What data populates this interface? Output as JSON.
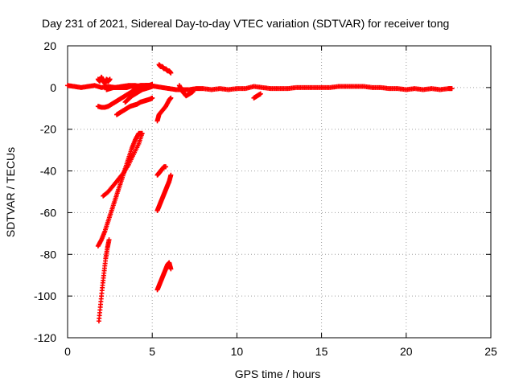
{
  "chart_data": {
    "type": "scatter",
    "title": "Day 231 of 2021, Sidereal Day-to-day VTEC variation (SDTVAR) for receiver tong",
    "xlabel": "GPS time / hours",
    "ylabel": "SDTVAR / TECUs",
    "xlim": [
      0,
      25
    ],
    "ylim": [
      -120,
      20
    ],
    "xticks": [
      0,
      5,
      10,
      15,
      20,
      25
    ],
    "yticks": [
      -120,
      -100,
      -80,
      -60,
      -40,
      -20,
      0,
      20
    ],
    "grid": true,
    "marker": "+",
    "color": "#ff0000",
    "series": [
      {
        "name": "SDTVAR",
        "segments": [
          {
            "x": [
              0.0,
              0.4,
              0.8,
              1.2,
              1.6,
              2.0,
              2.4,
              2.8,
              3.2,
              3.6,
              4.0,
              4.4,
              4.8,
              5.2,
              5.6,
              6.0,
              6.4,
              6.8,
              7.2,
              7.6,
              8.0,
              8.5,
              9.0,
              9.5,
              10.0,
              10.5,
              11.0,
              11.5,
              12.0,
              12.5,
              13.0,
              13.5,
              14.0,
              14.5,
              15.0,
              15.5,
              16.0,
              16.5,
              17.0,
              17.5,
              18.0,
              18.5,
              19.0,
              19.5,
              20.0,
              20.5,
              21.0,
              21.5,
              22.0,
              22.5,
              22.7
            ],
            "y": [
              1.0,
              0.5,
              0.0,
              0.5,
              1.0,
              0.0,
              0.5,
              0.0,
              0.5,
              1.0,
              1.0,
              0.5,
              1.0,
              0.5,
              0.0,
              -0.5,
              -1.0,
              -1.0,
              -1.0,
              -0.5,
              -0.5,
              -1.0,
              -0.5,
              -1.0,
              -0.5,
              -0.5,
              0.5,
              0.0,
              -0.5,
              -0.5,
              -0.5,
              0.0,
              0.0,
              0.0,
              0.0,
              0.0,
              0.5,
              0.5,
              0.5,
              0.5,
              0.0,
              0.0,
              -0.5,
              -0.5,
              -1.0,
              -0.5,
              -1.0,
              -0.5,
              -1.0,
              -0.5,
              -0.5
            ]
          },
          {
            "x": [
              1.8,
              2.0,
              2.2,
              2.4,
              2.6,
              2.8,
              3.0,
              3.2,
              3.4,
              3.6,
              3.8,
              4.0,
              4.2,
              4.4,
              4.6,
              4.8,
              5.0
            ],
            "y": [
              -9,
              -9.5,
              -9.5,
              -9,
              -8,
              -7,
              -6,
              -5,
              -4,
              -3,
              -2,
              -1,
              0,
              0.5,
              1,
              1,
              1.5
            ]
          },
          {
            "x": [
              2.3,
              2.5,
              2.7,
              2.9,
              3.1,
              3.3,
              3.5,
              3.7,
              3.9,
              4.1,
              4.3,
              4.5,
              4.7,
              4.9,
              5.0
            ],
            "y": [
              -1,
              -0.5,
              0,
              0,
              0,
              0,
              0,
              0.5,
              0.5,
              0.5,
              1,
              1,
              1,
              1,
              1
            ]
          },
          {
            "x": [
              2.9,
              3.1,
              3.3,
              3.5,
              3.7,
              3.9,
              4.1,
              4.3,
              4.5,
              4.7,
              4.9,
              5.0
            ],
            "y": [
              -13,
              -12,
              -11,
              -10,
              -9,
              -8.5,
              -8,
              -7,
              -6.5,
              -6,
              -5.5,
              -5
            ]
          },
          {
            "x": [
              3.4,
              3.6,
              3.8,
              4.0,
              4.2,
              4.4,
              4.6,
              4.8,
              5.0
            ],
            "y": [
              -7,
              -5.5,
              -4,
              -3,
              -2,
              -1,
              -0.5,
              0,
              0.5
            ]
          },
          {
            "x": [
              1.8,
              2.0,
              2.2,
              2.4,
              2.6,
              2.8,
              3.0,
              3.2,
              3.4,
              3.6,
              3.8,
              4.0,
              4.2,
              4.4
            ],
            "y": [
              -76,
              -73,
              -69,
              -64,
              -59,
              -54,
              -49,
              -44,
              -39,
              -34,
              -29,
              -25,
              -22,
              -22
            ]
          },
          {
            "x": [
              2.1,
              2.4,
              2.7,
              3.0,
              3.3,
              3.6,
              3.9,
              4.2,
              4.4
            ],
            "y": [
              -52,
              -50,
              -47,
              -44,
              -41,
              -37,
              -32,
              -27,
              -22
            ]
          },
          {
            "x": [
              1.85,
              1.95,
              2.05,
              2.15,
              2.25,
              2.35,
              2.45
            ],
            "y": [
              -112,
              -104,
              -96,
              -89,
              -82,
              -77,
              -73
            ]
          },
          {
            "x": [
              1.8,
              1.9,
              2.0,
              2.1,
              2.2,
              2.3,
              2.4,
              2.5
            ],
            "y": [
              4,
              3,
              5,
              3,
              2,
              4,
              3,
              4
            ]
          },
          {
            "x": [
              5.4,
              5.5,
              5.6,
              5.7,
              5.8,
              5.9,
              6.0,
              6.1
            ],
            "y": [
              11,
              10,
              10,
              9,
              9,
              8,
              8,
              7
            ]
          },
          {
            "x": [
              5.3,
              5.4,
              5.6,
              5.8,
              6.0,
              6.1
            ],
            "y": [
              -16,
              -13,
              -11,
              -9,
              -6,
              -5
            ]
          },
          {
            "x": [
              5.3,
              5.4,
              5.5,
              5.6,
              5.7,
              5.8
            ],
            "y": [
              -42,
              -41,
              -40,
              -39,
              -38,
              -38
            ]
          },
          {
            "x": [
              5.3,
              5.4,
              5.5,
              5.6,
              5.7,
              5.8,
              5.9,
              6.0,
              6.1
            ],
            "y": [
              -59,
              -57,
              -55,
              -53,
              -51,
              -49,
              -47,
              -45,
              -42
            ]
          },
          {
            "x": [
              5.3,
              5.4,
              5.5,
              5.6,
              5.7,
              5.8,
              5.9,
              6.0,
              6.1
            ],
            "y": [
              -97,
              -95,
              -93,
              -91,
              -89,
              -87,
              -85,
              -84,
              -87
            ]
          },
          {
            "x": [
              6.6,
              6.8,
              7.0,
              7.2,
              7.4
            ],
            "y": [
              1,
              -2,
              -4,
              -3,
              -2
            ]
          },
          {
            "x": [
              11.0,
              11.2,
              11.4
            ],
            "y": [
              -5,
              -4,
              -3
            ]
          }
        ]
      }
    ]
  }
}
